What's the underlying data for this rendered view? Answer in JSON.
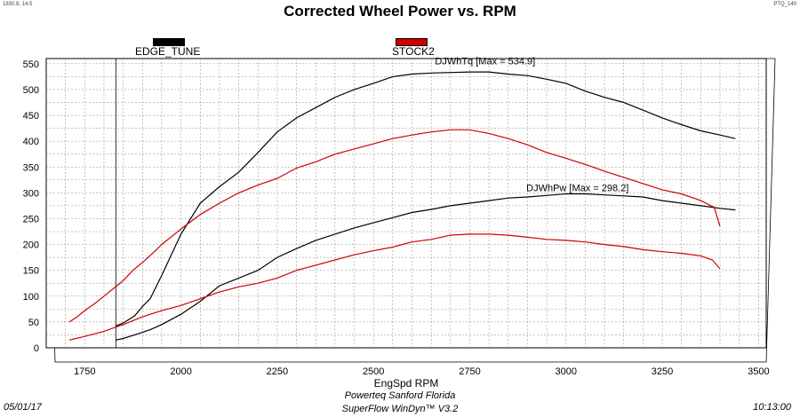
{
  "header": {
    "corner_left": "1830.8, 14.5",
    "corner_right": "PTQ_140",
    "title": "Corrected Wheel Power vs. RPM"
  },
  "legend": [
    {
      "label": "EDGE_TUNE",
      "color": "#000000"
    },
    {
      "label": "STOCK2",
      "color": "#cc0000"
    }
  ],
  "footer": {
    "date": "05/01/17",
    "line1": "Powerteq Sanford Florida",
    "line2": "SuperFlow WinDyn™ V3.2",
    "time": "10:13:00"
  },
  "chart_data": {
    "type": "line",
    "title": "Corrected Wheel Power vs. RPM",
    "xlabel": "EngSpd RPM",
    "ylabel": "",
    "xlim": [
      1650,
      3520
    ],
    "ylim": [
      0,
      560
    ],
    "x_ticks": [
      1750,
      2000,
      2250,
      2500,
      2750,
      3000,
      3250,
      3500
    ],
    "y_ticks": [
      0,
      50,
      100,
      150,
      200,
      250,
      300,
      350,
      400,
      450,
      500,
      550
    ],
    "grid": true,
    "cursor_rpm": 1830.8,
    "annotations": [
      {
        "text": "DJWhTq [Max = 534.9]",
        "x": 2790,
        "y": 549
      },
      {
        "text": "DJWhPw [Max = 298.2]",
        "x": 3030,
        "y": 303
      }
    ],
    "series": [
      {
        "name": "EDGE_TUNE",
        "quantity": "DJWhTq",
        "color": "#000000",
        "points": [
          [
            1830,
            42
          ],
          [
            1850,
            48
          ],
          [
            1880,
            62
          ],
          [
            1900,
            80
          ],
          [
            1920,
            95
          ],
          [
            1950,
            140
          ],
          [
            2000,
            220
          ],
          [
            2050,
            280
          ],
          [
            2100,
            312
          ],
          [
            2150,
            340
          ],
          [
            2200,
            378
          ],
          [
            2250,
            418
          ],
          [
            2300,
            445
          ],
          [
            2350,
            465
          ],
          [
            2400,
            485
          ],
          [
            2450,
            500
          ],
          [
            2500,
            512
          ],
          [
            2550,
            525
          ],
          [
            2600,
            530
          ],
          [
            2650,
            532
          ],
          [
            2700,
            533
          ],
          [
            2750,
            534
          ],
          [
            2800,
            534
          ],
          [
            2850,
            530
          ],
          [
            2900,
            527
          ],
          [
            2950,
            520
          ],
          [
            3000,
            512
          ],
          [
            3050,
            497
          ],
          [
            3100,
            485
          ],
          [
            3150,
            475
          ],
          [
            3200,
            460
          ],
          [
            3250,
            445
          ],
          [
            3300,
            432
          ],
          [
            3350,
            420
          ],
          [
            3400,
            412
          ],
          [
            3440,
            405
          ]
        ]
      },
      {
        "name": "EDGE_TUNE",
        "quantity": "DJWhPw",
        "color": "#000000",
        "points": [
          [
            1830,
            15
          ],
          [
            1850,
            18
          ],
          [
            1880,
            25
          ],
          [
            1920,
            35
          ],
          [
            1950,
            45
          ],
          [
            2000,
            65
          ],
          [
            2050,
            90
          ],
          [
            2100,
            120
          ],
          [
            2150,
            135
          ],
          [
            2200,
            150
          ],
          [
            2250,
            175
          ],
          [
            2300,
            192
          ],
          [
            2350,
            208
          ],
          [
            2400,
            220
          ],
          [
            2450,
            232
          ],
          [
            2500,
            242
          ],
          [
            2550,
            252
          ],
          [
            2600,
            262
          ],
          [
            2650,
            268
          ],
          [
            2700,
            275
          ],
          [
            2750,
            280
          ],
          [
            2800,
            285
          ],
          [
            2850,
            290
          ],
          [
            2900,
            292
          ],
          [
            2950,
            295
          ],
          [
            3000,
            298
          ],
          [
            3050,
            298
          ],
          [
            3100,
            296
          ],
          [
            3150,
            294
          ],
          [
            3200,
            292
          ],
          [
            3250,
            285
          ],
          [
            3300,
            280
          ],
          [
            3350,
            275
          ],
          [
            3400,
            270
          ],
          [
            3440,
            267
          ]
        ]
      },
      {
        "name": "STOCK2",
        "quantity": "DJWhTq",
        "color": "#cc0000",
        "points": [
          [
            1710,
            50
          ],
          [
            1730,
            60
          ],
          [
            1750,
            72
          ],
          [
            1775,
            85
          ],
          [
            1800,
            100
          ],
          [
            1825,
            115
          ],
          [
            1850,
            130
          ],
          [
            1875,
            150
          ],
          [
            1900,
            165
          ],
          [
            1925,
            182
          ],
          [
            1950,
            200
          ],
          [
            1975,
            215
          ],
          [
            2000,
            230
          ],
          [
            2050,
            258
          ],
          [
            2100,
            280
          ],
          [
            2150,
            300
          ],
          [
            2200,
            315
          ],
          [
            2250,
            328
          ],
          [
            2300,
            348
          ],
          [
            2350,
            360
          ],
          [
            2400,
            375
          ],
          [
            2450,
            385
          ],
          [
            2500,
            395
          ],
          [
            2550,
            405
          ],
          [
            2600,
            412
          ],
          [
            2650,
            418
          ],
          [
            2700,
            422
          ],
          [
            2750,
            422
          ],
          [
            2800,
            415
          ],
          [
            2850,
            405
          ],
          [
            2900,
            393
          ],
          [
            2950,
            378
          ],
          [
            3000,
            367
          ],
          [
            3050,
            355
          ],
          [
            3100,
            342
          ],
          [
            3150,
            330
          ],
          [
            3200,
            318
          ],
          [
            3250,
            306
          ],
          [
            3300,
            298
          ],
          [
            3350,
            285
          ],
          [
            3385,
            272
          ],
          [
            3400,
            235
          ]
        ]
      },
      {
        "name": "STOCK2",
        "quantity": "DJWhPw",
        "color": "#cc0000",
        "points": [
          [
            1710,
            15
          ],
          [
            1750,
            22
          ],
          [
            1800,
            32
          ],
          [
            1850,
            45
          ],
          [
            1900,
            60
          ],
          [
            1950,
            72
          ],
          [
            2000,
            82
          ],
          [
            2050,
            95
          ],
          [
            2100,
            108
          ],
          [
            2150,
            118
          ],
          [
            2200,
            125
          ],
          [
            2250,
            135
          ],
          [
            2300,
            150
          ],
          [
            2350,
            160
          ],
          [
            2400,
            170
          ],
          [
            2450,
            180
          ],
          [
            2500,
            188
          ],
          [
            2550,
            195
          ],
          [
            2600,
            205
          ],
          [
            2650,
            210
          ],
          [
            2700,
            218
          ],
          [
            2750,
            220
          ],
          [
            2800,
            220
          ],
          [
            2850,
            218
          ],
          [
            2900,
            214
          ],
          [
            2950,
            210
          ],
          [
            3000,
            208
          ],
          [
            3050,
            205
          ],
          [
            3100,
            200
          ],
          [
            3150,
            196
          ],
          [
            3200,
            190
          ],
          [
            3250,
            186
          ],
          [
            3300,
            183
          ],
          [
            3350,
            178
          ],
          [
            3380,
            170
          ],
          [
            3400,
            153
          ]
        ]
      }
    ]
  }
}
